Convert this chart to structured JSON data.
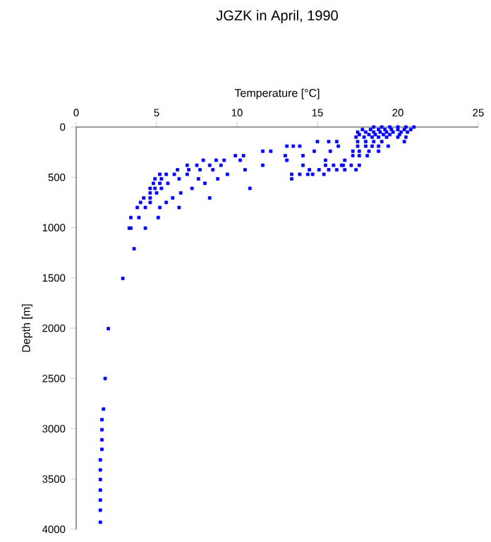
{
  "chart_data": {
    "type": "scatter",
    "title": "JGZK in April, 1990",
    "xlabel": "Temperature [°C]",
    "ylabel": "Depth [m]",
    "xlim": [
      0,
      25
    ],
    "xticks": [
      0,
      5,
      10,
      15,
      20,
      25
    ],
    "ylim": [
      4000,
      0
    ],
    "yticks": [
      0,
      500,
      1000,
      1500,
      2000,
      2500,
      3000,
      3500,
      4000
    ],
    "marker": "square",
    "series": [
      {
        "color": "#0000ff",
        "x": [
          18.5,
          19,
          19.5,
          20,
          20.5,
          21,
          17.8,
          18.3,
          18.8,
          19.2,
          19.6,
          20,
          20.4,
          20.8,
          17.5,
          18,
          18.5,
          18.9,
          19.3,
          19.7,
          20.2,
          20.6,
          17.6,
          18.2,
          18.6,
          19.1,
          19.5,
          20.1,
          17.4,
          17.9,
          18.4,
          18.8,
          19.3,
          20,
          20.5,
          15,
          15.7,
          16.2,
          17.5,
          18,
          18.5,
          19,
          20.4,
          16.3,
          17.5,
          18,
          18.4,
          18.8,
          19.4,
          15.8,
          17.2,
          17.6,
          18.2,
          18.8,
          13.1,
          13.5,
          13.9,
          14.8,
          13,
          14.1,
          17.2,
          17.6,
          18.1,
          13.1,
          15.5,
          16.7,
          11.6,
          12.1,
          14.1,
          15.5,
          16,
          16.5,
          16.6,
          17.1,
          17.6,
          11.6,
          14.5,
          15.1,
          15.7,
          16.2,
          16.7,
          17.4,
          13.4,
          13.9,
          14.4,
          14.7,
          15.4,
          13.4,
          9.9,
          10.4,
          10.2,
          7.9,
          8.7,
          9.2,
          6.9,
          7.5,
          8.3,
          9,
          6.3,
          7,
          7.7,
          8.5,
          10.5,
          5.2,
          5.6,
          6.1,
          6.9,
          9.4,
          4.9,
          5.3,
          6.4,
          7.6,
          8.8,
          4.8,
          5.2,
          5.7,
          8,
          4.6,
          4.9,
          5.3,
          7.2,
          10.8,
          4.6,
          5,
          6.5,
          4.2,
          4.6,
          6,
          8.3,
          4,
          4.6,
          5.6,
          3.8,
          4.3,
          5.2,
          6.4,
          3.4,
          3.9,
          5.1,
          3.3,
          3.4,
          4.3,
          3.6,
          2.9,
          2,
          1.8,
          1.7,
          1.6,
          1.6,
          1.6,
          1.6,
          1.5,
          1.5,
          1.5,
          1.5,
          1.5,
          1.5,
          1.5
        ],
        "values": [
          0,
          0,
          0,
          0,
          0,
          0,
          25,
          25,
          25,
          25,
          25,
          25,
          25,
          25,
          50,
          50,
          50,
          50,
          50,
          50,
          50,
          50,
          75,
          75,
          75,
          75,
          75,
          75,
          100,
          100,
          100,
          100,
          100,
          100,
          100,
          145,
          145,
          145,
          145,
          145,
          145,
          145,
          145,
          190,
          190,
          190,
          190,
          190,
          190,
          240,
          240,
          240,
          240,
          240,
          190,
          190,
          190,
          240,
          285,
          285,
          285,
          285,
          285,
          330,
          330,
          330,
          240,
          240,
          380,
          380,
          380,
          380,
          380,
          380,
          380,
          380,
          425,
          425,
          425,
          425,
          425,
          425,
          470,
          470,
          470,
          470,
          470,
          515,
          285,
          285,
          330,
          330,
          330,
          330,
          380,
          380,
          380,
          380,
          425,
          425,
          425,
          425,
          425,
          470,
          470,
          470,
          470,
          470,
          515,
          515,
          515,
          515,
          515,
          560,
          560,
          560,
          560,
          610,
          610,
          610,
          610,
          610,
          655,
          655,
          655,
          705,
          705,
          705,
          705,
          750,
          750,
          750,
          800,
          800,
          800,
          800,
          900,
          900,
          900,
          1005,
          1005,
          1005,
          1210,
          1505,
          2005,
          2500,
          2805,
          2910,
          3010,
          3110,
          3205,
          3310,
          3410,
          3505,
          3610,
          3710,
          3810,
          3930
        ]
      }
    ]
  }
}
